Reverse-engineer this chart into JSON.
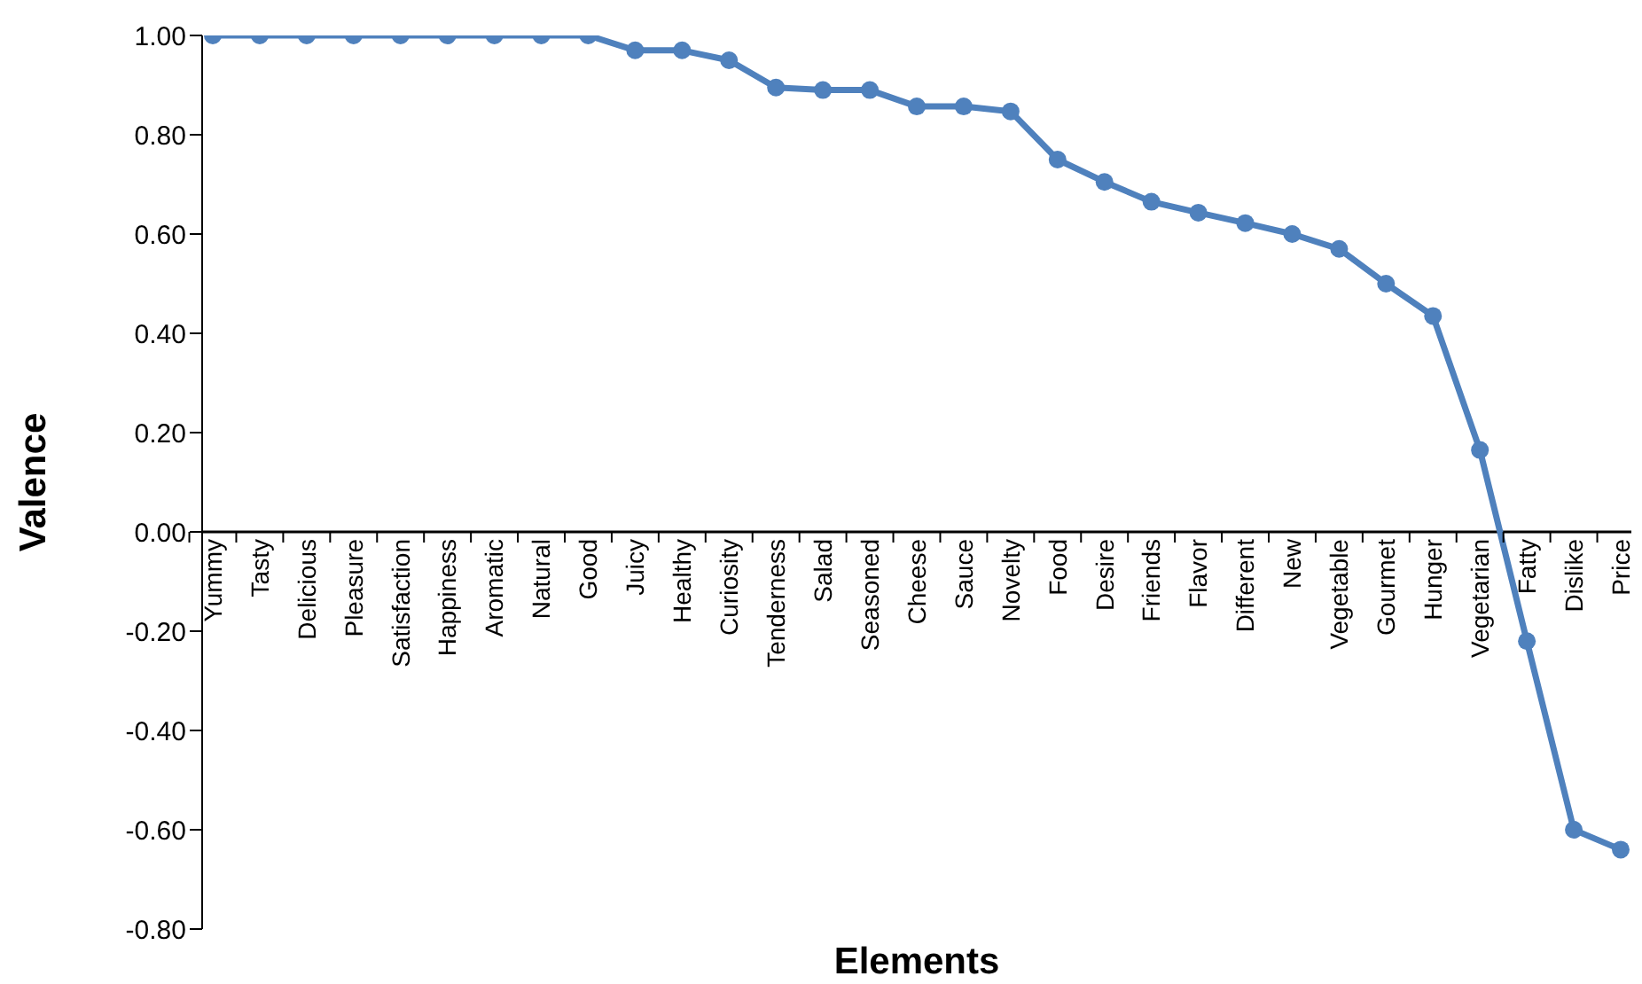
{
  "chart_data": {
    "type": "line",
    "xlabel": "Elements",
    "ylabel": "Valence",
    "categories": [
      "Yummy",
      "Tasty",
      "Delicious",
      "Pleasure",
      "Satisfaction",
      "Happiness",
      "Aromatic",
      "Natural",
      "Good",
      "Juicy",
      "Healthy",
      "Curiosity",
      "Tenderness",
      "Salad",
      "Seasoned",
      "Cheese",
      "Sauce",
      "Novelty",
      "Food",
      "Desire",
      "Friends",
      "Flavor",
      "Different",
      "New",
      "Vegetable",
      "Gourmet",
      "Hunger",
      "Vegetarian",
      "Fatty",
      "Dislike",
      "Price"
    ],
    "series": [
      {
        "color": "#4f81bd",
        "values": [
          1.0,
          1.0,
          1.0,
          1.0,
          1.0,
          1.0,
          1.0,
          1.0,
          1.0,
          0.97,
          0.97,
          0.95,
          0.895,
          0.89,
          0.89,
          0.857,
          0.857,
          0.847,
          0.75,
          0.705,
          0.665,
          0.643,
          0.622,
          0.6,
          0.57,
          0.5,
          0.435,
          0.165,
          -0.22,
          -0.6,
          -0.64
        ]
      }
    ],
    "ylim": [
      -0.8,
      1.0
    ],
    "yticks": [
      {
        "value": -0.8,
        "label": "-0.80"
      },
      {
        "value": -0.6,
        "label": "-0.60"
      },
      {
        "value": -0.4,
        "label": "-0.40"
      },
      {
        "value": -0.2,
        "label": "-0.20"
      },
      {
        "value": 0,
        "label": "0.00"
      },
      {
        "value": 0.2,
        "label": "0.20"
      },
      {
        "value": 0.4,
        "label": "0.40"
      },
      {
        "value": 0.6,
        "label": "0.60"
      },
      {
        "value": 0.8,
        "label": "0.80"
      },
      {
        "value": 1.0,
        "label": "1.00"
      }
    ],
    "grid": false,
    "legend": false,
    "marker": "circle",
    "line_style": "solid"
  }
}
